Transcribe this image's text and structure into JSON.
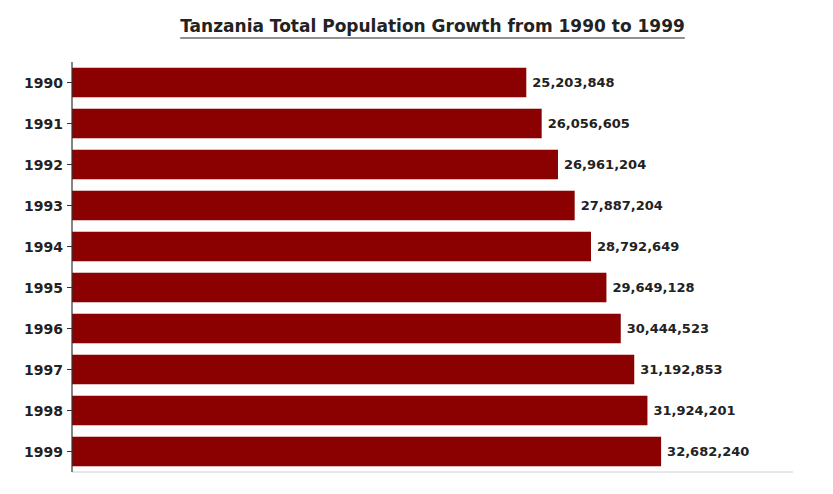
{
  "chart_data": {
    "type": "bar",
    "orientation": "horizontal",
    "title": "Tanzania Total Population Growth from 1990 to 1999",
    "categories": [
      "1990",
      "1991",
      "1992",
      "1993",
      "1994",
      "1995",
      "1996",
      "1997",
      "1998",
      "1999"
    ],
    "values": [
      25203848,
      26056605,
      26961204,
      27887204,
      28792649,
      29649128,
      30444523,
      31192853,
      31924201,
      32682240
    ],
    "value_labels": [
      "25,203,848",
      "26,056,605",
      "26,961,204",
      "27,887,204",
      "28,792,649",
      "29,649,128",
      "30,444,523",
      "31,192,853",
      "31,924,201",
      "32,682,240"
    ],
    "color": "#8B0000",
    "xlim": [
      0,
      40000000
    ],
    "data_labels": true,
    "tick_labels": "y",
    "grid": false
  }
}
